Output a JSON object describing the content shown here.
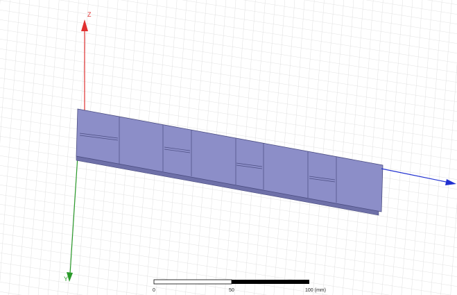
{
  "axes": {
    "z_label": "Z",
    "y_label": "Y"
  },
  "scale_bar": {
    "labels": [
      "0",
      "50",
      "100 (mm)"
    ]
  }
}
